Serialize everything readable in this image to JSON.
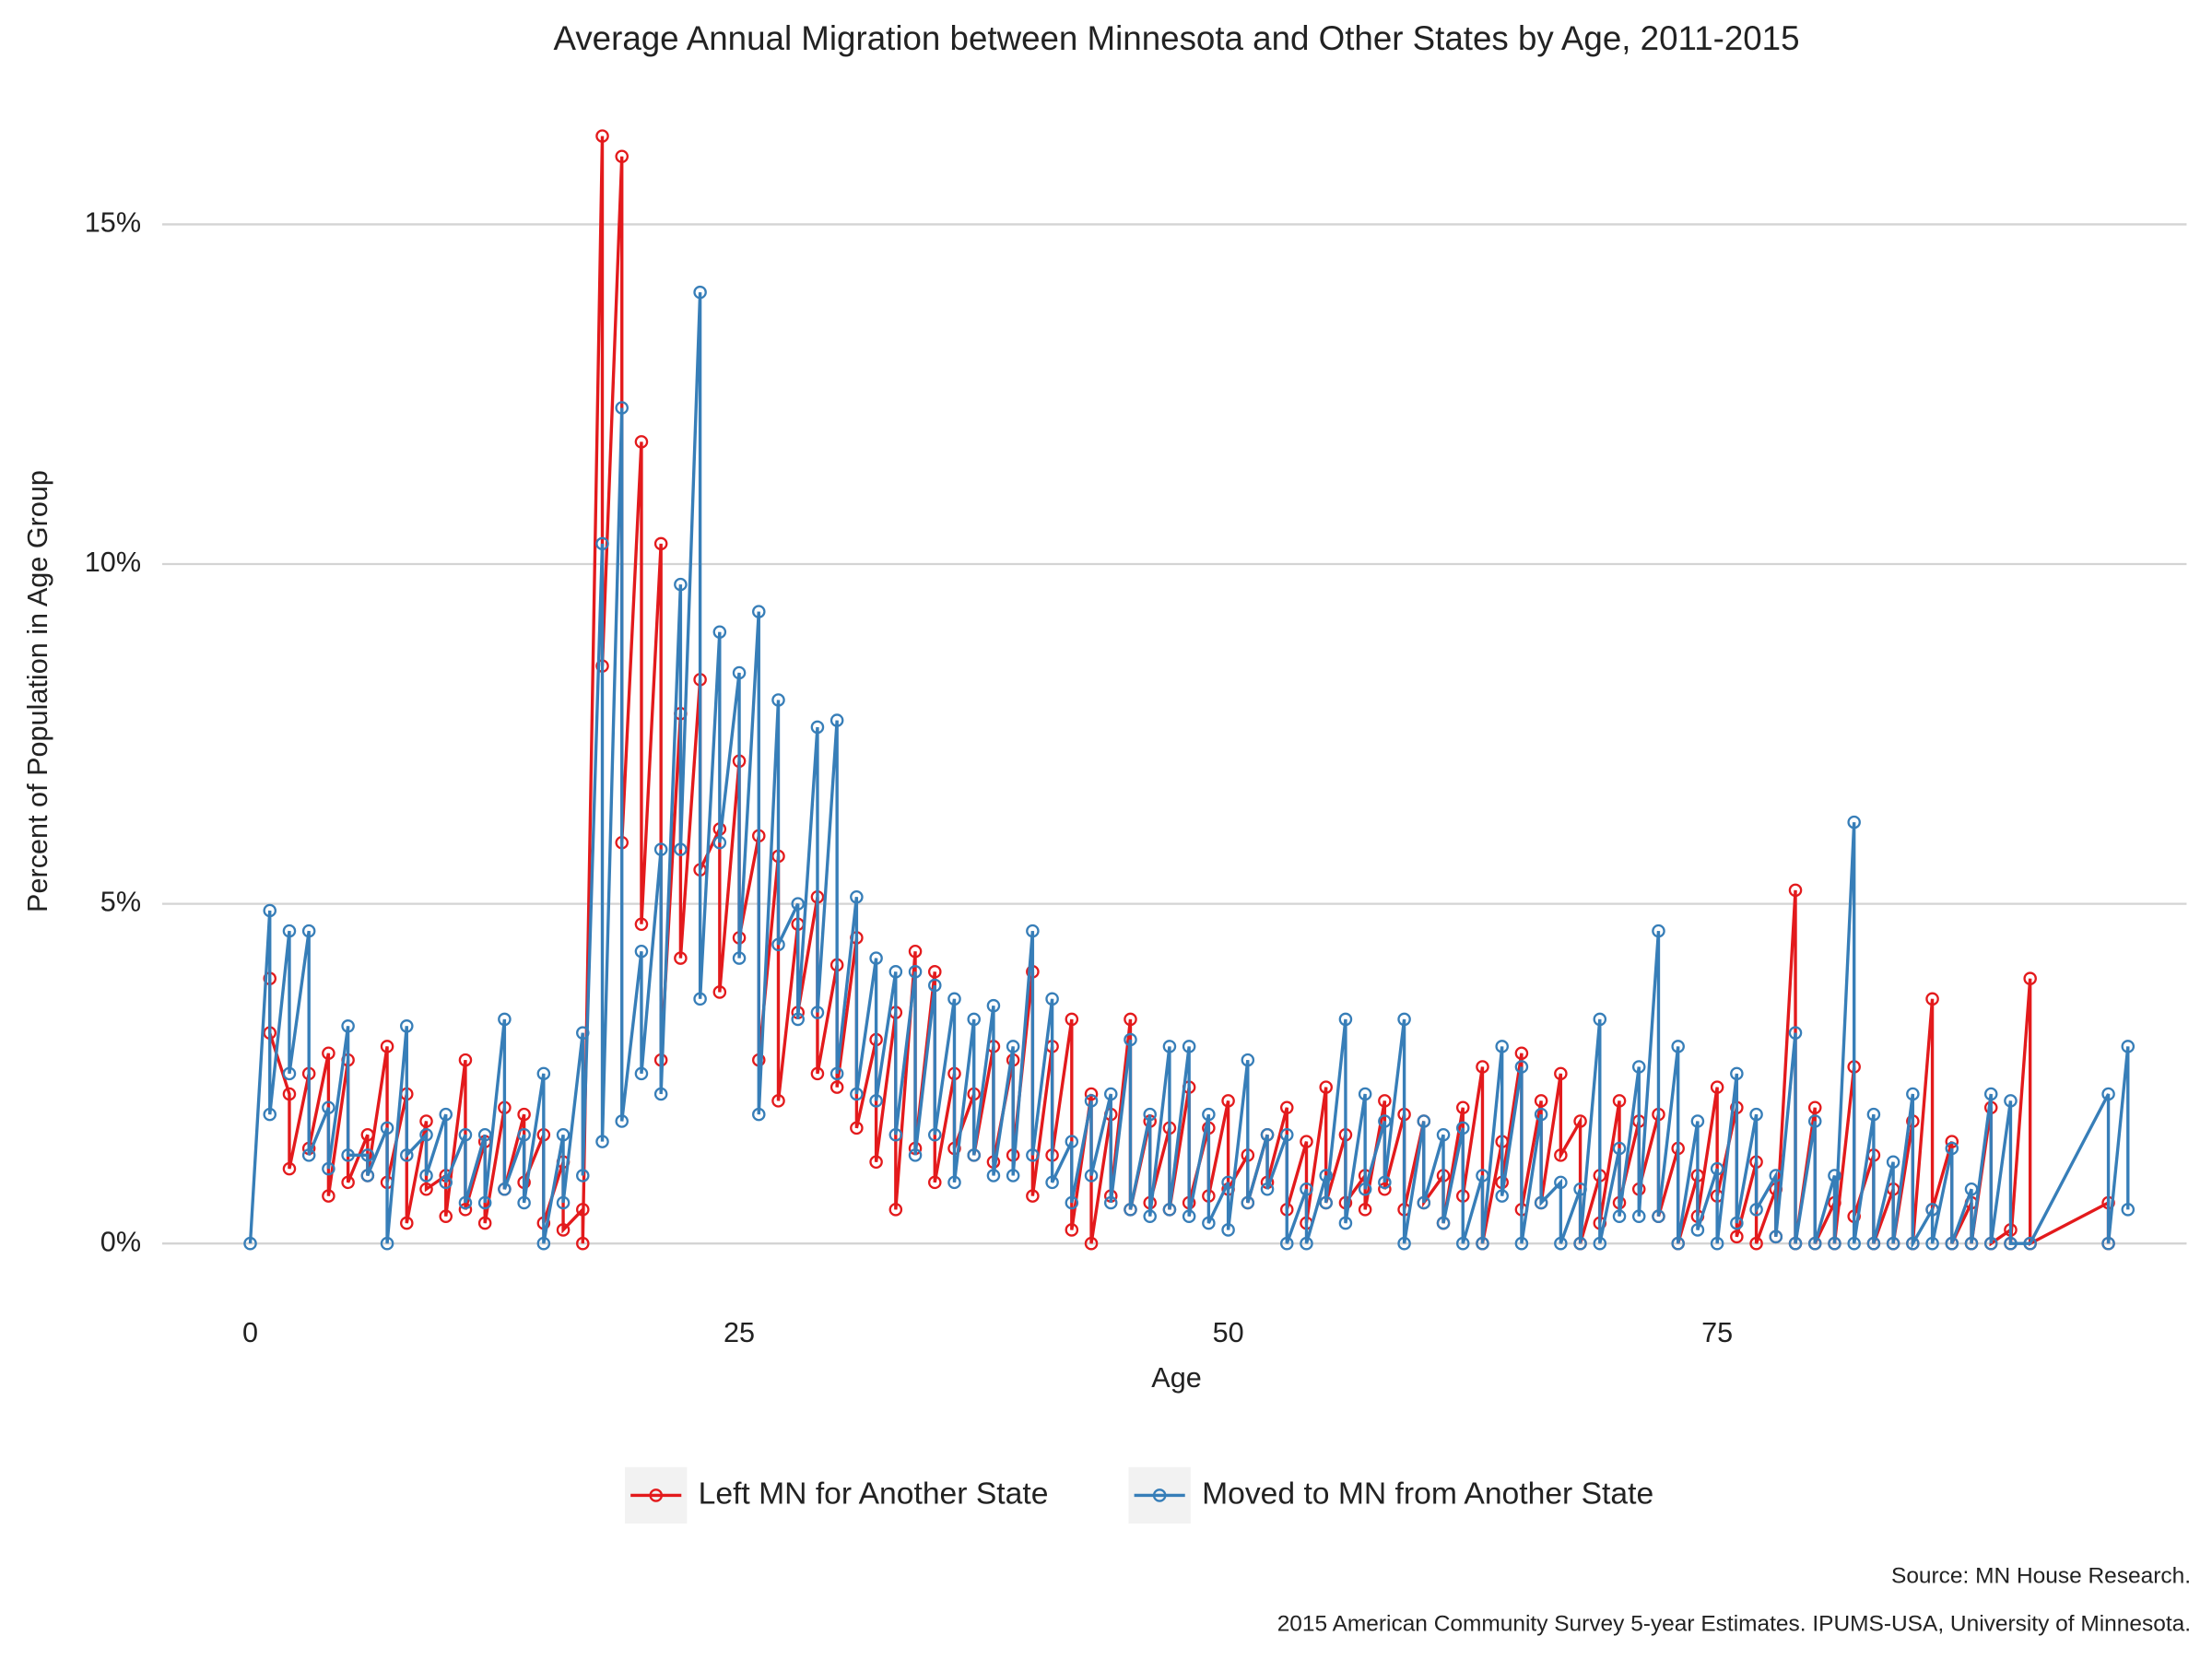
{
  "chart_data": {
    "type": "line",
    "title": "Average Annual Migration between Minnesota and Other States by Age, 2011-2015",
    "x_label": "Age",
    "y_label": "Percent of Population in Age Group",
    "source": "Source: MN House Research.",
    "note": "2015 American Community Survey 5-year Estimates. IPUMS-USA, University of Minnesota.",
    "xlim": [
      -4.5,
      99
    ],
    "ylim": [
      -0.8,
      16.6
    ],
    "xticks": [
      0,
      25,
      50,
      75
    ],
    "yticks": [
      {
        "value": 0,
        "label": "0%"
      },
      {
        "value": 5,
        "label": "5%"
      },
      {
        "value": 10,
        "label": "10%"
      },
      {
        "value": 15,
        "label": "15%"
      }
    ],
    "grid": "y",
    "legend": "bottom",
    "series": [
      {
        "name": "Left MN for Another State",
        "color": "#e31a1c",
        "x": [
          1,
          1,
          2,
          2,
          3,
          3,
          4,
          4,
          5,
          5,
          6,
          6,
          7,
          7,
          8,
          8,
          9,
          9,
          10,
          10,
          11,
          11,
          12,
          12,
          13,
          13,
          14,
          14,
          15,
          15,
          16,
          16,
          17,
          17,
          18,
          18,
          19,
          19,
          20,
          20,
          21,
          21,
          22,
          22,
          23,
          23,
          24,
          24,
          25,
          25,
          26,
          26,
          27,
          27,
          28,
          28,
          29,
          29,
          30,
          30,
          31,
          31,
          32,
          32,
          33,
          33,
          34,
          34,
          35,
          35,
          36,
          36,
          37,
          37,
          38,
          38,
          39,
          39,
          40,
          40,
          41,
          41,
          42,
          42,
          43,
          43,
          44,
          44,
          45,
          45,
          46,
          46,
          47,
          47,
          48,
          48,
          49,
          49,
          50,
          50,
          51,
          51,
          52,
          52,
          53,
          53,
          54,
          54,
          55,
          55,
          56,
          56,
          57,
          57,
          58,
          58,
          59,
          59,
          60,
          60,
          61,
          61,
          62,
          62,
          63,
          63,
          64,
          64,
          65,
          65,
          66,
          66,
          67,
          67,
          68,
          68,
          69,
          69,
          70,
          70,
          71,
          71,
          72,
          72,
          73,
          73,
          74,
          74,
          75,
          75,
          76,
          76,
          77,
          77,
          78,
          78,
          79,
          79,
          80,
          80,
          81,
          81,
          82,
          82,
          83,
          83,
          84,
          84,
          85,
          85,
          86,
          86,
          87,
          87,
          88,
          88,
          89,
          89,
          90,
          90,
          91,
          91,
          95,
          95
        ],
        "values": [
          3.9,
          3.1,
          2.2,
          1.1,
          2.5,
          1.4,
          2.8,
          0.7,
          2.7,
          0.9,
          1.6,
          1.0,
          2.9,
          0.9,
          2.2,
          0.3,
          1.8,
          0.8,
          1.0,
          0.4,
          2.7,
          0.5,
          1.5,
          0.3,
          2.0,
          0.8,
          1.9,
          0.9,
          1.6,
          0.3,
          1.2,
          0.2,
          0.5,
          0.0,
          16.3,
          8.5,
          16.0,
          5.9,
          11.8,
          4.7,
          10.3,
          2.7,
          7.8,
          4.2,
          8.3,
          5.5,
          6.1,
          3.7,
          7.1,
          4.5,
          6.0,
          2.7,
          5.7,
          2.1,
          4.7,
          3.4,
          5.1,
          2.5,
          4.1,
          2.3,
          4.5,
          1.7,
          3.0,
          1.2,
          3.4,
          0.5,
          4.3,
          1.4,
          4.0,
          0.9,
          2.5,
          1.4,
          2.2,
          1.3,
          2.9,
          1.2,
          2.7,
          1.3,
          4.0,
          0.7,
          2.9,
          1.3,
          3.3,
          0.2,
          2.2,
          0.0,
          1.9,
          0.7,
          3.3,
          0.5,
          1.8,
          0.6,
          1.7,
          0.5,
          2.3,
          0.6,
          1.7,
          0.7,
          2.1,
          0.8,
          1.3,
          0.6,
          1.6,
          0.9,
          2.0,
          0.5,
          1.5,
          0.3,
          2.3,
          0.6,
          1.6,
          0.6,
          1.0,
          0.5,
          2.1,
          0.8,
          1.9,
          0.5,
          1.8,
          0.6,
          1.0,
          0.3,
          2.0,
          0.7,
          2.6,
          0.0,
          1.5,
          0.9,
          2.8,
          0.5,
          2.1,
          0.6,
          2.5,
          1.3,
          1.8,
          0.0,
          1.0,
          0.3,
          2.1,
          0.6,
          1.8,
          0.8,
          1.9,
          0.4,
          1.4,
          0.0,
          1.0,
          0.4,
          2.3,
          0.7,
          2.0,
          0.1,
          1.2,
          0.0,
          0.8,
          0.1,
          5.2,
          0.0,
          2.0,
          0.0,
          0.6,
          0.0,
          2.6,
          0.4,
          1.3,
          0.0,
          0.8,
          0.0,
          1.8,
          0.0,
          3.6,
          0.5,
          1.5,
          0.0,
          0.6,
          0.0,
          2.0,
          0.0,
          0.2,
          0.0,
          3.9,
          0.0,
          0.6,
          0.0
        ]
      },
      {
        "name": "Moved to MN from Another State",
        "color": "#377eb8",
        "x": [
          0,
          1,
          1,
          2,
          2,
          3,
          3,
          4,
          4,
          5,
          5,
          6,
          6,
          7,
          7,
          8,
          8,
          9,
          9,
          10,
          10,
          11,
          11,
          12,
          12,
          13,
          13,
          14,
          14,
          15,
          15,
          16,
          16,
          17,
          17,
          18,
          18,
          19,
          19,
          20,
          20,
          21,
          21,
          22,
          22,
          23,
          23,
          24,
          24,
          25,
          25,
          26,
          26,
          27,
          27,
          28,
          28,
          29,
          29,
          30,
          30,
          31,
          31,
          32,
          32,
          33,
          33,
          34,
          34,
          35,
          35,
          36,
          36,
          37,
          37,
          38,
          38,
          39,
          39,
          40,
          40,
          41,
          41,
          42,
          42,
          43,
          43,
          44,
          44,
          45,
          45,
          46,
          46,
          47,
          47,
          48,
          48,
          49,
          49,
          50,
          50,
          51,
          51,
          52,
          52,
          53,
          53,
          54,
          54,
          55,
          55,
          56,
          56,
          57,
          57,
          58,
          58,
          59,
          59,
          60,
          60,
          61,
          61,
          62,
          62,
          63,
          63,
          64,
          64,
          65,
          65,
          66,
          66,
          67,
          67,
          68,
          68,
          69,
          69,
          70,
          70,
          71,
          71,
          72,
          72,
          73,
          73,
          74,
          74,
          75,
          75,
          76,
          76,
          77,
          77,
          78,
          78,
          79,
          79,
          80,
          80,
          81,
          81,
          82,
          82,
          83,
          83,
          84,
          84,
          85,
          85,
          86,
          86,
          87,
          87,
          88,
          88,
          89,
          89,
          90,
          90,
          91,
          95,
          95,
          96,
          96
        ],
        "values": [
          0.0,
          4.9,
          1.9,
          4.6,
          2.5,
          4.6,
          1.3,
          2.0,
          1.1,
          3.2,
          1.3,
          1.3,
          1.0,
          1.7,
          0.0,
          3.2,
          1.3,
          1.6,
          1.0,
          1.9,
          0.9,
          1.6,
          0.6,
          1.6,
          0.6,
          3.3,
          0.8,
          1.6,
          0.6,
          2.5,
          0.0,
          1.6,
          0.6,
          3.1,
          1.0,
          10.3,
          1.5,
          12.3,
          1.8,
          4.3,
          2.5,
          5.8,
          2.2,
          9.7,
          5.8,
          14.0,
          3.6,
          9.0,
          5.9,
          8.4,
          4.2,
          9.3,
          1.9,
          8.0,
          4.4,
          5.0,
          3.3,
          7.6,
          3.4,
          7.7,
          2.5,
          5.1,
          2.2,
          4.2,
          2.1,
          4.0,
          1.6,
          4.0,
          1.3,
          3.8,
          1.6,
          3.6,
          0.9,
          3.3,
          1.3,
          3.5,
          1.0,
          2.9,
          1.0,
          4.6,
          1.3,
          3.6,
          0.9,
          1.5,
          0.6,
          2.1,
          1.0,
          2.2,
          0.6,
          3.0,
          0.5,
          1.9,
          0.4,
          2.9,
          0.5,
          2.9,
          0.4,
          1.9,
          0.3,
          0.9,
          0.2,
          2.7,
          0.6,
          1.6,
          0.8,
          1.6,
          0.0,
          0.8,
          0.0,
          1.0,
          0.6,
          3.3,
          0.3,
          2.2,
          0.8,
          1.8,
          0.9,
          3.3,
          0.0,
          1.8,
          0.6,
          1.6,
          0.3,
          1.7,
          0.0,
          1.0,
          0.0,
          2.9,
          0.7,
          2.6,
          0.0,
          1.9,
          0.6,
          0.9,
          0.0,
          0.8,
          0.0,
          3.3,
          0.0,
          1.4,
          0.4,
          2.6,
          0.4,
          4.6,
          0.4,
          2.9,
          0.0,
          1.8,
          0.2,
          1.1,
          0.0,
          2.5,
          0.3,
          1.9,
          0.5,
          1.0,
          0.1,
          3.1,
          0.0,
          1.8,
          0.0,
          1.0,
          0.0,
          6.2,
          0.0,
          1.9,
          0.0,
          1.2,
          0.0,
          2.2,
          0.0,
          0.5,
          0.0,
          1.4,
          0.0,
          0.8,
          0.0,
          2.2,
          0.0,
          2.1,
          0.0,
          0.0,
          2.2,
          0.0,
          2.9,
          0.5
        ]
      }
    ]
  }
}
